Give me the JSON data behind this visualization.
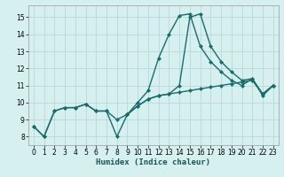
{
  "xlabel": "Humidex (Indice chaleur)",
  "background_color": "#d6f0ef",
  "grid_color": "#b8d8d8",
  "line_color": "#1a6b6b",
  "xlim": [
    -0.5,
    23.5
  ],
  "ylim": [
    7.5,
    15.7
  ],
  "yticks": [
    8,
    9,
    10,
    11,
    12,
    13,
    14,
    15
  ],
  "xticks": [
    0,
    1,
    2,
    3,
    4,
    5,
    6,
    7,
    8,
    9,
    10,
    11,
    12,
    13,
    14,
    15,
    16,
    17,
    18,
    19,
    20,
    21,
    22,
    23
  ],
  "line1_x": [
    0,
    1,
    2,
    3,
    4,
    5,
    6,
    7,
    8,
    9,
    10,
    11,
    12,
    13,
    14,
    15,
    16,
    17,
    18,
    19,
    20,
    21,
    22,
    23
  ],
  "line1_y": [
    8.6,
    8.0,
    9.5,
    9.7,
    9.7,
    9.9,
    9.5,
    9.5,
    9.0,
    9.3,
    9.8,
    10.2,
    10.4,
    10.5,
    10.6,
    10.7,
    10.8,
    10.9,
    11.0,
    11.1,
    11.2,
    11.3,
    10.5,
    11.0
  ],
  "line2_x": [
    0,
    1,
    2,
    3,
    4,
    5,
    6,
    7,
    8,
    9,
    10,
    11,
    12,
    13,
    14,
    15,
    16,
    17,
    18,
    19,
    20,
    21,
    22,
    23
  ],
  "line2_y": [
    8.6,
    8.0,
    9.5,
    9.7,
    9.7,
    9.9,
    9.5,
    9.5,
    8.0,
    9.3,
    9.8,
    10.2,
    10.4,
    10.5,
    11.0,
    15.0,
    15.2,
    13.3,
    12.4,
    11.8,
    11.3,
    11.4,
    10.5,
    11.0
  ],
  "line3_x": [
    9,
    10,
    11,
    12,
    13,
    14,
    15,
    16,
    17,
    18,
    19,
    20,
    21,
    22,
    23
  ],
  "line3_y": [
    9.3,
    10.0,
    10.7,
    12.6,
    14.0,
    15.1,
    15.2,
    13.3,
    12.4,
    11.8,
    11.3,
    11.0,
    11.4,
    10.4,
    11.0
  ],
  "marker_size": 2.5,
  "line_width": 1.0,
  "tick_fontsize": 5.5,
  "xlabel_fontsize": 6.5
}
